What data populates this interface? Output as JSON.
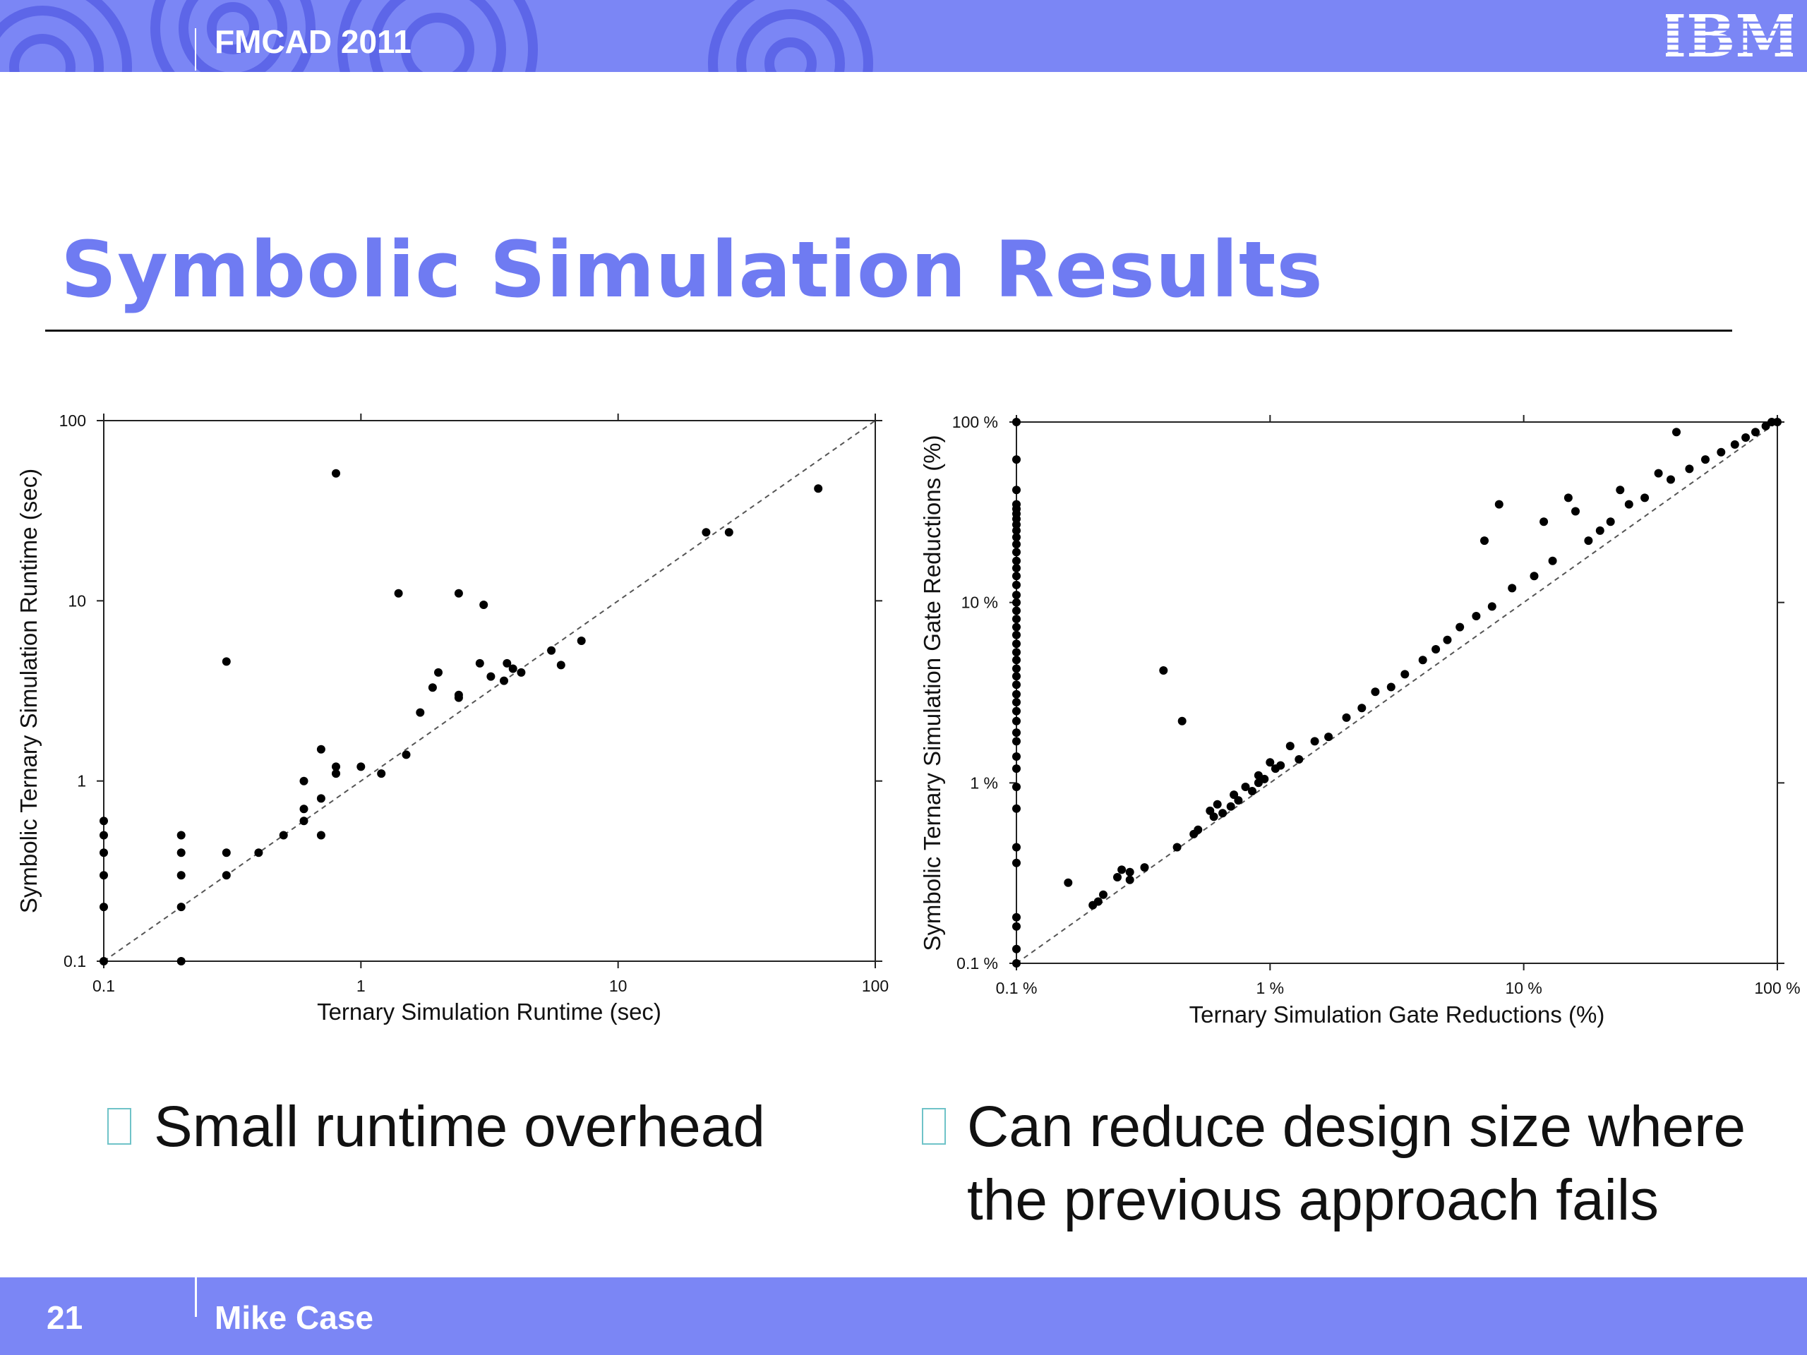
{
  "header": {
    "conference": "FMCAD 2011",
    "logo_text": "IBM"
  },
  "slide": {
    "title": "Symbolic Simulation Results"
  },
  "bullets": [
    {
      "lines": [
        "Small runtime overhead"
      ]
    },
    {
      "lines": [
        "Can reduce design size where",
        "the previous approach fails"
      ]
    }
  ],
  "footer": {
    "page_number": "21",
    "author": "Mike Case"
  },
  "colors": {
    "banner": "#7b86f5",
    "title": "#6f7bf2",
    "bullet_box": "#6fc3c8"
  },
  "chart_data": [
    {
      "type": "scatter",
      "title": "",
      "xlabel": "Ternary Simulation Runtime (sec)",
      "ylabel": "Symbolic Ternary Simulation Runtime (sec)",
      "xscale": "log",
      "yscale": "log",
      "xlim": [
        0.1,
        100
      ],
      "ylim": [
        0.1,
        100
      ],
      "xticks": [
        "0.1",
        "1",
        "10",
        "100"
      ],
      "yticks": [
        "0.1",
        "1",
        "10",
        "100"
      ],
      "grid": false,
      "reference_line": "y = x (dashed)",
      "points": [
        [
          0.1,
          0.1
        ],
        [
          0.1,
          0.2
        ],
        [
          0.1,
          0.3
        ],
        [
          0.1,
          0.4
        ],
        [
          0.1,
          0.5
        ],
        [
          0.1,
          0.6
        ],
        [
          0.2,
          0.1
        ],
        [
          0.2,
          0.2
        ],
        [
          0.2,
          0.3
        ],
        [
          0.2,
          0.4
        ],
        [
          0.2,
          0.5
        ],
        [
          0.3,
          0.3
        ],
        [
          0.3,
          0.4
        ],
        [
          0.3,
          4.6
        ],
        [
          0.4,
          0.4
        ],
        [
          0.5,
          0.5
        ],
        [
          0.6,
          0.6
        ],
        [
          0.6,
          0.7
        ],
        [
          0.6,
          1.0
        ],
        [
          0.7,
          0.5
        ],
        [
          0.7,
          0.8
        ],
        [
          0.7,
          1.5
        ],
        [
          0.8,
          1.1
        ],
        [
          0.8,
          1.2
        ],
        [
          0.8,
          51
        ],
        [
          1.0,
          1.2
        ],
        [
          1.2,
          1.1
        ],
        [
          1.4,
          11
        ],
        [
          1.5,
          1.4
        ],
        [
          1.7,
          2.4
        ],
        [
          1.9,
          3.3
        ],
        [
          2.0,
          4.0
        ],
        [
          2.4,
          2.9
        ],
        [
          2.4,
          3.0
        ],
        [
          2.4,
          11
        ],
        [
          2.9,
          4.5
        ],
        [
          3.0,
          9.5
        ],
        [
          3.2,
          3.8
        ],
        [
          3.6,
          3.6
        ],
        [
          3.7,
          4.5
        ],
        [
          3.9,
          4.2
        ],
        [
          4.2,
          4.0
        ],
        [
          5.5,
          5.3
        ],
        [
          6.0,
          4.4
        ],
        [
          7.2,
          6.0
        ],
        [
          22,
          24
        ],
        [
          27,
          24
        ],
        [
          60,
          42
        ]
      ]
    },
    {
      "type": "scatter",
      "title": "",
      "xlabel": "Ternary Simulation Gate Reductions (%)",
      "ylabel": "Symbolic Ternary Simulation Gate Reductions (%)",
      "xscale": "log",
      "yscale": "log",
      "xlim": [
        0.1,
        100
      ],
      "ylim": [
        0.1,
        100
      ],
      "xticks": [
        "0.1 %",
        "1 %",
        "10 %",
        "100 %"
      ],
      "yticks": [
        "0.1 %",
        "1 %",
        "10 %",
        "100 %"
      ],
      "grid": false,
      "reference_line": "y = x (dashed)",
      "points": [
        [
          0.1,
          0.1
        ],
        [
          0.1,
          0.12
        ],
        [
          0.1,
          0.16
        ],
        [
          0.1,
          0.18
        ],
        [
          0.1,
          0.36
        ],
        [
          0.1,
          0.44
        ],
        [
          0.1,
          0.72
        ],
        [
          0.1,
          0.95
        ],
        [
          0.1,
          1.2
        ],
        [
          0.1,
          1.4
        ],
        [
          0.1,
          1.7
        ],
        [
          0.1,
          1.9
        ],
        [
          0.1,
          2.2
        ],
        [
          0.1,
          2.5
        ],
        [
          0.1,
          2.8
        ],
        [
          0.1,
          3.1
        ],
        [
          0.1,
          3.5
        ],
        [
          0.1,
          3.9
        ],
        [
          0.1,
          4.3
        ],
        [
          0.1,
          4.8
        ],
        [
          0.1,
          5.3
        ],
        [
          0.1,
          5.9
        ],
        [
          0.1,
          6.6
        ],
        [
          0.1,
          7.3
        ],
        [
          0.1,
          8.1
        ],
        [
          0.1,
          9.0
        ],
        [
          0.1,
          10
        ],
        [
          0.1,
          11
        ],
        [
          0.1,
          12.5
        ],
        [
          0.1,
          14
        ],
        [
          0.1,
          15.5
        ],
        [
          0.1,
          17
        ],
        [
          0.1,
          19
        ],
        [
          0.1,
          21
        ],
        [
          0.1,
          23
        ],
        [
          0.1,
          25
        ],
        [
          0.1,
          27
        ],
        [
          0.1,
          29
        ],
        [
          0.1,
          31
        ],
        [
          0.1,
          33
        ],
        [
          0.1,
          35
        ],
        [
          0.1,
          42
        ],
        [
          0.1,
          62
        ],
        [
          0.1,
          100
        ],
        [
          0.16,
          0.28
        ],
        [
          0.2,
          0.21
        ],
        [
          0.21,
          0.22
        ],
        [
          0.22,
          0.24
        ],
        [
          0.25,
          0.3
        ],
        [
          0.26,
          0.33
        ],
        [
          0.28,
          0.29
        ],
        [
          0.28,
          0.32
        ],
        [
          0.32,
          0.34
        ],
        [
          0.38,
          4.2
        ],
        [
          0.43,
          0.44
        ],
        [
          0.45,
          2.2
        ],
        [
          0.5,
          0.52
        ],
        [
          0.52,
          0.55
        ],
        [
          0.58,
          0.7
        ],
        [
          0.6,
          0.65
        ],
        [
          0.62,
          0.76
        ],
        [
          0.65,
          0.68
        ],
        [
          0.7,
          0.74
        ],
        [
          0.72,
          0.86
        ],
        [
          0.75,
          0.8
        ],
        [
          0.8,
          0.95
        ],
        [
          0.85,
          0.9
        ],
        [
          0.9,
          1.0
        ],
        [
          0.9,
          1.1
        ],
        [
          0.95,
          1.05
        ],
        [
          1.0,
          1.3
        ],
        [
          1.05,
          1.2
        ],
        [
          1.1,
          1.25
        ],
        [
          1.2,
          1.6
        ],
        [
          1.3,
          1.35
        ],
        [
          1.5,
          1.7
        ],
        [
          1.7,
          1.8
        ],
        [
          2.0,
          2.3
        ],
        [
          2.3,
          2.6
        ],
        [
          2.6,
          3.2
        ],
        [
          3.0,
          3.4
        ],
        [
          3.4,
          4.0
        ],
        [
          4.0,
          4.8
        ],
        [
          4.5,
          5.5
        ],
        [
          5.0,
          6.2
        ],
        [
          5.6,
          7.3
        ],
        [
          6.5,
          8.4
        ],
        [
          7.5,
          9.5
        ],
        [
          7.0,
          22
        ],
        [
          8.0,
          35
        ],
        [
          9.0,
          12
        ],
        [
          11,
          14
        ],
        [
          12,
          28
        ],
        [
          13,
          17
        ],
        [
          15,
          38
        ],
        [
          16,
          32
        ],
        [
          18,
          22
        ],
        [
          20,
          25
        ],
        [
          22,
          28
        ],
        [
          24,
          42
        ],
        [
          26,
          35
        ],
        [
          30,
          38
        ],
        [
          34,
          52
        ],
        [
          38,
          48
        ],
        [
          40,
          88
        ],
        [
          45,
          55
        ],
        [
          52,
          62
        ],
        [
          60,
          68
        ],
        [
          68,
          75
        ],
        [
          75,
          82
        ],
        [
          82,
          88
        ],
        [
          90,
          95
        ],
        [
          95,
          100
        ],
        [
          100,
          100
        ]
      ]
    }
  ]
}
